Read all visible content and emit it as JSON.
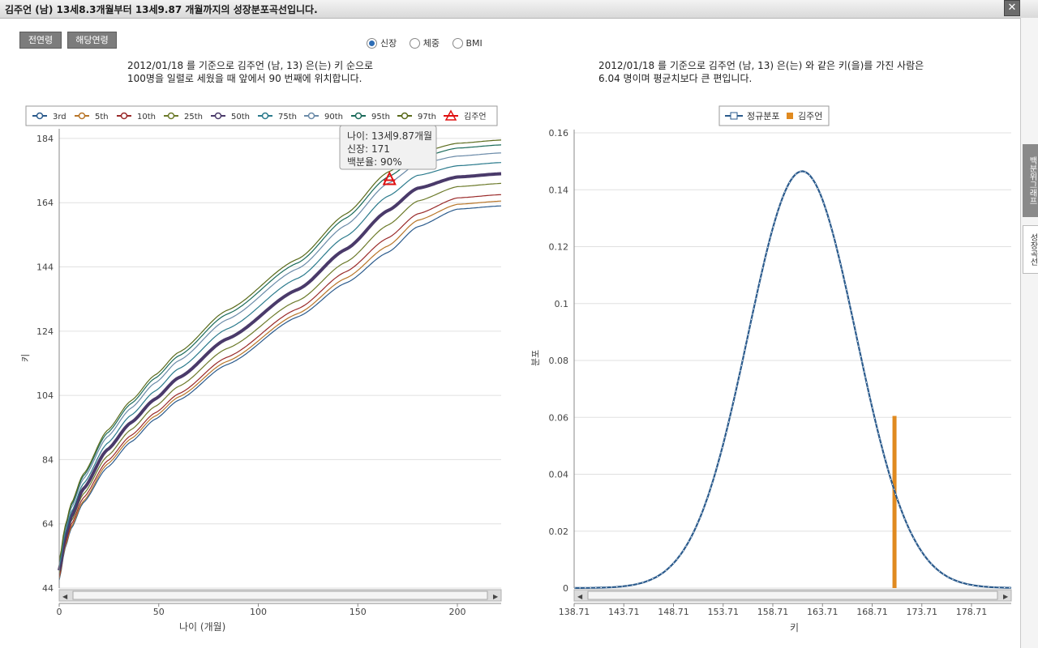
{
  "window": {
    "title": "김주언 (남) 13세8.3개월부터 13세9.87 개월까지의 성장분포곡선입니다.",
    "close_label": "✕"
  },
  "buttons": {
    "all_ages": "전연령",
    "current_age": "해당연령"
  },
  "radios": [
    {
      "label": "신장",
      "selected": true
    },
    {
      "label": "체중",
      "selected": false
    },
    {
      "label": "BMI",
      "selected": false
    }
  ],
  "left_desc": {
    "line1": "2012/01/18 를 기준으로 김주언 (남, 13) 은(는) 키 순으로",
    "line2": "100명을 일렬로 세웠을 때 앞에서 90 번째에 위치합니다."
  },
  "right_desc": {
    "line1": "2012/01/18 를 기준으로 김주언 (남, 13) 은(는) 와 같은 키(을)를 가진 사람은",
    "line2": "6.04 명이며 평균치보다 큰 편입니다."
  },
  "sidebar": {
    "tab1": "백분위그래프",
    "tab2": "성장곡선"
  },
  "tooltip": {
    "line1": "나이: 13세9.87개월",
    "line2": "신장: 171",
    "line3": "백분율: 90%"
  },
  "chart_data": [
    {
      "type": "line",
      "xlabel": "나이 (개월)",
      "ylabel": "키",
      "xlim": [
        0,
        222
      ],
      "ylim": [
        44,
        186
      ],
      "xticks": [
        0,
        50,
        100,
        150,
        200
      ],
      "yticks": [
        44,
        64,
        84,
        104,
        124,
        144,
        164,
        184
      ],
      "x": [
        0,
        3,
        6,
        12,
        24,
        36,
        48,
        60,
        84,
        120,
        144,
        165,
        180,
        200,
        222
      ],
      "legend": [
        "3rd",
        "5th",
        "10th",
        "25th",
        "50th",
        "75th",
        "90th",
        "95th",
        "97th",
        "김주언"
      ],
      "series": [
        {
          "name": "3rd",
          "color": "#2a5a8c",
          "values": [
            46.5,
            56.5,
            62.5,
            70.5,
            81.5,
            89.5,
            96.5,
            102.5,
            113.5,
            128.5,
            139.0,
            148.5,
            156.5,
            162.0,
            163.0
          ]
        },
        {
          "name": "5th",
          "color": "#b87528",
          "values": [
            47.0,
            57.0,
            63.0,
            71.0,
            82.5,
            90.5,
            97.5,
            103.5,
            114.5,
            129.5,
            140.5,
            150.5,
            158.5,
            163.5,
            164.5
          ]
        },
        {
          "name": "10th",
          "color": "#9a2a2a",
          "values": [
            47.5,
            57.7,
            63.8,
            72.0,
            83.5,
            91.5,
            98.5,
            104.5,
            115.8,
            131.0,
            142.5,
            153.0,
            160.5,
            165.5,
            166.5
          ]
        },
        {
          "name": "25th",
          "color": "#6c7a2a",
          "values": [
            48.5,
            58.6,
            64.8,
            73.2,
            85.0,
            93.3,
            100.5,
            106.8,
            118.5,
            133.5,
            145.5,
            157.0,
            164.5,
            169.0,
            170.0
          ]
        },
        {
          "name": "50th",
          "color": "#4a3a6a",
          "values": [
            49.5,
            59.8,
            66.2,
            74.8,
            87.0,
            95.5,
            102.8,
            109.5,
            121.5,
            137.0,
            149.5,
            161.5,
            168.5,
            172.0,
            173.0
          ]
        },
        {
          "name": "75th",
          "color": "#2a7a8c",
          "values": [
            50.5,
            61.0,
            67.6,
            76.4,
            89.0,
            97.8,
            105.3,
            112.3,
            124.6,
            140.5,
            153.5,
            166.0,
            172.5,
            175.5,
            176.5
          ]
        },
        {
          "name": "90th",
          "color": "#6a8aa8",
          "values": [
            51.5,
            62.2,
            68.9,
            77.9,
            91.0,
            100.0,
            107.8,
            114.8,
            127.5,
            143.5,
            157.0,
            170.0,
            176.0,
            178.5,
            179.5
          ]
        },
        {
          "name": "95th",
          "color": "#1a6a5a",
          "values": [
            52.0,
            62.9,
            69.7,
            78.8,
            92.2,
            101.4,
            109.3,
            116.3,
            129.2,
            145.3,
            159.2,
            172.0,
            178.0,
            181.0,
            182.0
          ]
        },
        {
          "name": "97th",
          "color": "#5a6a1a",
          "values": [
            52.5,
            63.4,
            70.3,
            79.4,
            93.0,
            102.3,
            110.3,
            117.4,
            130.4,
            146.5,
            160.5,
            173.5,
            179.5,
            182.5,
            183.5
          ]
        }
      ],
      "highlight_series": "50th",
      "marker": {
        "name": "김주언",
        "x": 165.9,
        "y": 171,
        "color": "#e01010"
      }
    },
    {
      "type": "line",
      "xlabel": "키",
      "ylabel": "분포",
      "xlim": [
        138.71,
        182.71
      ],
      "ylim": [
        0,
        0.16
      ],
      "xtick_labels": [
        "138.71",
        "143.71",
        "148.71",
        "153.71",
        "158.71",
        "163.71",
        "168.71",
        "173.71",
        "178.71"
      ],
      "yticks": [
        0,
        0.02,
        0.04,
        0.06,
        0.08,
        0.1,
        0.12,
        0.14,
        0.16
      ],
      "ytick_labels": [
        "0",
        "0.02",
        "0.04",
        "0.06",
        "0.08",
        "0.1",
        "0.12",
        "0.14",
        "0.16"
      ],
      "legend": [
        "정규분포",
        "김주언"
      ],
      "series": [
        {
          "name": "정규분포",
          "color": "#2a5a8c",
          "distribution": "normal",
          "mean": 161.66,
          "sd": 5.45,
          "peak": 0.1465
        }
      ],
      "bar": {
        "name": "김주언",
        "x": 171,
        "value": 0.0605,
        "color": "#e08a20"
      }
    }
  ]
}
